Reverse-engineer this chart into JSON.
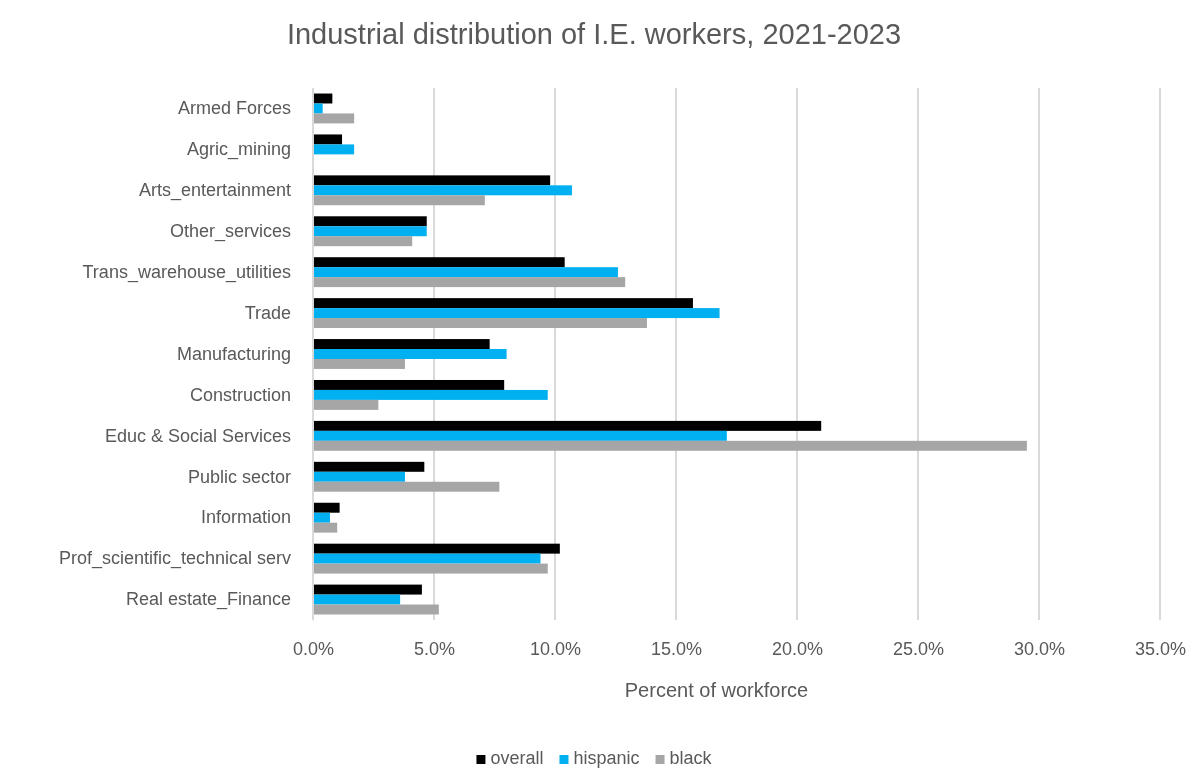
{
  "chart_data": {
    "type": "bar",
    "orientation": "horizontal",
    "title": "Industrial distribution of I.E. workers, 2021-2023",
    "xlabel": "Percent of workforce",
    "categories": [
      "Armed Forces",
      "Agric_mining",
      "Arts_entertainment",
      "Other_services",
      "Trans_warehouse_utilities",
      "Trade",
      "Manufacturing",
      "Construction",
      "Educ & Social Services",
      "Public sector",
      "Information",
      "Prof_scientific_technical serv",
      "Real estate_Finance"
    ],
    "series": [
      {
        "name": "overall",
        "color": "#000000",
        "values": [
          0.8,
          1.2,
          9.8,
          4.7,
          10.4,
          15.7,
          7.3,
          7.9,
          21.0,
          4.6,
          1.1,
          10.2,
          4.5
        ]
      },
      {
        "name": "hispanic",
        "color": "#00b0f0",
        "values": [
          0.4,
          1.7,
          10.7,
          4.7,
          12.6,
          16.8,
          8.0,
          9.7,
          17.1,
          3.8,
          0.7,
          9.4,
          3.6
        ]
      },
      {
        "name": "black",
        "color": "#a6a6a6",
        "values": [
          1.7,
          0,
          7.1,
          4.1,
          12.9,
          13.8,
          3.8,
          2.7,
          29.5,
          7.7,
          1.0,
          9.7,
          5.2
        ]
      }
    ],
    "xlim": [
      0,
      35
    ],
    "xticks": [
      {
        "value": 0,
        "label": "0.0%"
      },
      {
        "value": 5,
        "label": "5.0%"
      },
      {
        "value": 10,
        "label": "10.0%"
      },
      {
        "value": 15,
        "label": "15.0%"
      },
      {
        "value": 20,
        "label": "20.0%"
      },
      {
        "value": 25,
        "label": "25.0%"
      },
      {
        "value": 30,
        "label": "30.0%"
      },
      {
        "value": 35,
        "label": "35.0%"
      }
    ],
    "grid": "x",
    "legend": "bottom"
  }
}
